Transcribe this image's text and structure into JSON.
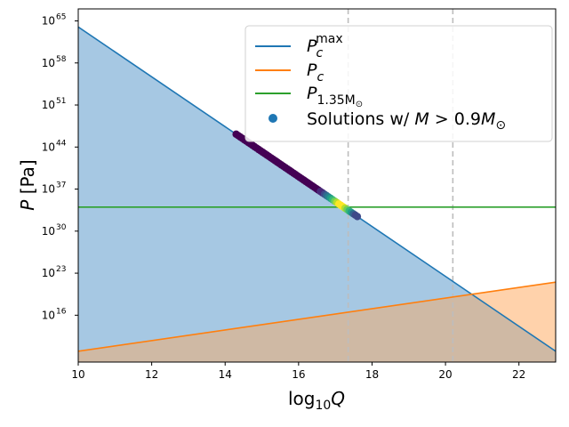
{
  "chart_data": {
    "type": "line",
    "xlabel": {
      "base": "log",
      "sub": "10",
      "var": "Q"
    },
    "ylabel": {
      "var": "P",
      "unit": " [Pa]"
    },
    "xlim": [
      10,
      23
    ],
    "ylim_log10": [
      8.2,
      67.0
    ],
    "y_scale": "log",
    "grid": false,
    "legend_placement": "top-right",
    "x_ticks": [
      {
        "value": 10,
        "label": "10"
      },
      {
        "value": 12,
        "label": "12"
      },
      {
        "value": 14,
        "label": "14"
      },
      {
        "value": 16,
        "label": "16"
      },
      {
        "value": 18,
        "label": "18"
      },
      {
        "value": 20,
        "label": "20"
      },
      {
        "value": 22,
        "label": "22"
      }
    ],
    "y_ticks": [
      {
        "exp": 16,
        "base": "10",
        "sup": "16"
      },
      {
        "exp": 23,
        "base": "10",
        "sup": "23"
      },
      {
        "exp": 30,
        "base": "10",
        "sup": "30"
      },
      {
        "exp": 37,
        "base": "10",
        "sup": "37"
      },
      {
        "exp": 44,
        "base": "10",
        "sup": "44"
      },
      {
        "exp": 51,
        "base": "10",
        "sup": "51"
      },
      {
        "exp": 58,
        "base": "10",
        "sup": "58"
      },
      {
        "exp": 65,
        "base": "10",
        "sup": "65"
      }
    ],
    "series": [
      {
        "key": "pcmax",
        "legend": {
          "main": "P",
          "sub": "c",
          "sup": "max"
        },
        "color": "#1f77b4",
        "fill": "#a6c8e3",
        "x": [
          10,
          23
        ],
        "y_log10": [
          64.0,
          10.0
        ]
      },
      {
        "key": "pc",
        "legend": {
          "main": "P",
          "sub": "c",
          "sup": ""
        },
        "color": "#ff7f0e",
        "fill": "#ffd2ab",
        "x": [
          10,
          23
        ],
        "y_log10": [
          10.0,
          21.5
        ]
      },
      {
        "key": "p135",
        "legend": {
          "main": "P",
          "sub": "1.35M",
          "subsub": "⊙"
        },
        "color": "#2ca02c",
        "x": [
          10,
          23
        ],
        "y_log10": [
          34.0,
          34.0
        ]
      }
    ],
    "overlap_fill": "#cfb9a4",
    "vertical_lines": [
      {
        "x": 17.35,
        "color": "#bdbdbd",
        "dash": "6,4"
      },
      {
        "x": 20.2,
        "color": "#bdbdbd",
        "dash": "6,4"
      }
    ],
    "scatter": {
      "legend": {
        "text": "Solutions w/ ",
        "var": "M",
        "rel": " > 0.9",
        "var2": "M",
        "sub": "⊙"
      },
      "legend_color": "#1f77b4",
      "x_start": 14.3,
      "x_end": 17.6,
      "points": 60,
      "peak_x": 17.15,
      "colors": [
        "#440154",
        "#482878",
        "#3e4989",
        "#31688e",
        "#26828e",
        "#1f9e89",
        "#35b779",
        "#6ece58",
        "#b5de2b",
        "#fde725"
      ]
    }
  }
}
